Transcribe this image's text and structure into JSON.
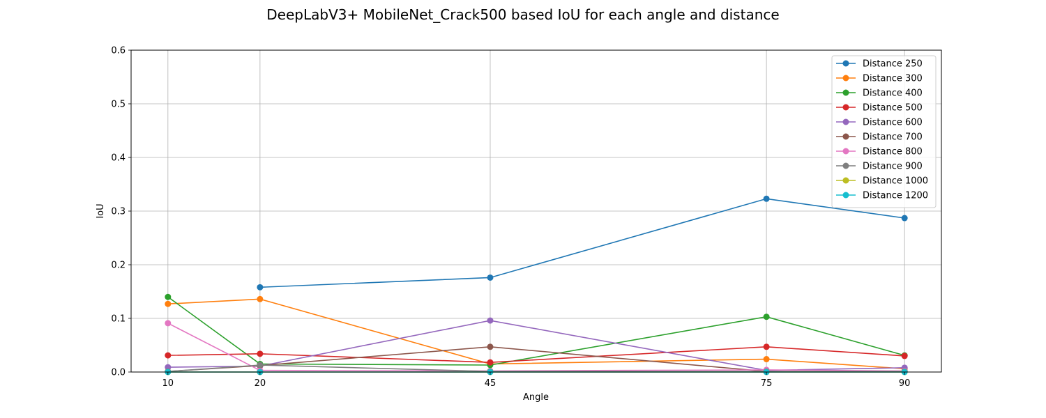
{
  "chart_data": {
    "type": "line",
    "title": "DeepLabV3+ MobileNet_Crack500 based IoU for each angle and distance",
    "xlabel": "Angle",
    "ylabel": "IoU",
    "x_ticks": [
      10,
      20,
      45,
      75,
      90
    ],
    "xlim": [
      6,
      94
    ],
    "ylim": [
      0,
      0.6
    ],
    "y_ticks": [
      "0.0",
      "0.1",
      "0.2",
      "0.3",
      "0.4",
      "0.5",
      "0.6"
    ],
    "grid": true,
    "legend_position": "top-right",
    "series": [
      {
        "name": "Distance 250",
        "color": "#1f77b4",
        "x": [
          20,
          45,
          75,
          90
        ],
        "values": [
          0.158,
          0.176,
          0.323,
          0.287
        ]
      },
      {
        "name": "Distance 300",
        "color": "#ff7f0e",
        "x": [
          10,
          20,
          45,
          75,
          90
        ],
        "values": [
          0.127,
          0.136,
          0.015,
          0.024,
          0.006
        ]
      },
      {
        "name": "Distance 400",
        "color": "#2ca02c",
        "x": [
          10,
          20,
          45,
          75,
          90
        ],
        "values": [
          0.14,
          0.015,
          0.013,
          0.103,
          0.031
        ]
      },
      {
        "name": "Distance 500",
        "color": "#d62728",
        "x": [
          10,
          20,
          45,
          75,
          90
        ],
        "values": [
          0.031,
          0.034,
          0.018,
          0.047,
          0.03
        ]
      },
      {
        "name": "Distance 600",
        "color": "#9467bd",
        "x": [
          10,
          20,
          45,
          75,
          90
        ],
        "values": [
          0.009,
          0.011,
          0.096,
          0.003,
          0.008
        ]
      },
      {
        "name": "Distance 700",
        "color": "#8c564b",
        "x": [
          10,
          20,
          45,
          75,
          90
        ],
        "values": [
          0.001,
          0.012,
          0.047,
          0.001,
          0.001
        ]
      },
      {
        "name": "Distance 800",
        "color": "#e377c2",
        "x": [
          10,
          20,
          45,
          75,
          90
        ],
        "values": [
          0.091,
          0.003,
          0.002,
          0.004,
          0.002
        ]
      },
      {
        "name": "Distance 900",
        "color": "#7f7f7f",
        "x": [
          10,
          20,
          45,
          75,
          90
        ],
        "values": [
          0.001,
          0.013,
          0.001,
          0.001,
          0.001
        ]
      },
      {
        "name": "Distance 1000",
        "color": "#bcbd22",
        "x": [
          10,
          20,
          45,
          75,
          90
        ],
        "values": [
          0.0,
          0.0,
          0.0,
          0.0,
          0.0
        ]
      },
      {
        "name": "Distance 1200",
        "color": "#17becf",
        "x": [
          10,
          20,
          45,
          75,
          90
        ],
        "values": [
          0.0,
          0.0,
          0.0,
          0.0,
          0.0
        ]
      }
    ]
  }
}
